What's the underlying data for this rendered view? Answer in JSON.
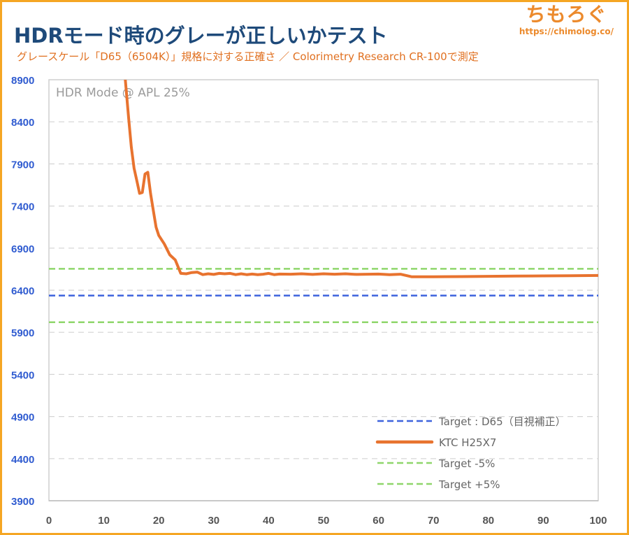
{
  "header": {
    "title": "HDRモード時のグレーが正しいかテスト",
    "subtitle": "グレースケール「D65（6504K）」規格に対する正確さ ／ Colorimetry Research CR-100で測定",
    "brand_name": "ちもろぐ",
    "brand_url": "https://chimolog.co/"
  },
  "chart_data": {
    "type": "line",
    "annotation": "HDR Mode @ APL 25%",
    "xlim": [
      0,
      100
    ],
    "ylim": [
      3900,
      8900
    ],
    "x_ticks": [
      0,
      10,
      20,
      30,
      40,
      50,
      60,
      70,
      80,
      90,
      100
    ],
    "y_ticks": [
      3900,
      4400,
      4900,
      5400,
      5900,
      6400,
      6900,
      7400,
      7900,
      8400,
      8900
    ],
    "grid": "horizontal dashed",
    "legend_position": "bottom-right",
    "series": [
      {
        "name": "Target : D65（目視補正）",
        "style": "dashed",
        "color": "#3d63dd",
        "x": [
          0,
          100
        ],
        "y": [
          6337,
          6337
        ]
      },
      {
        "name": "KTC H25X7",
        "style": "solid",
        "color": "#e8732f",
        "x": [
          13.9,
          14.5,
          15,
          15.5,
          16,
          16.5,
          17,
          17.5,
          18,
          18.5,
          19,
          19.5,
          20,
          21,
          22,
          23,
          24,
          25,
          26,
          27,
          28,
          29,
          30,
          31,
          32,
          33,
          34,
          35,
          36,
          37,
          38,
          39,
          40,
          41,
          42,
          44,
          46,
          48,
          50,
          52,
          54,
          56,
          58,
          60,
          62,
          64,
          66,
          68,
          70,
          75,
          80,
          85,
          90,
          95,
          100
        ],
        "y": [
          8900,
          8450,
          8100,
          7850,
          7700,
          7550,
          7560,
          7780,
          7800,
          7550,
          7350,
          7150,
          7050,
          6950,
          6820,
          6760,
          6600,
          6595,
          6610,
          6615,
          6585,
          6595,
          6588,
          6600,
          6595,
          6600,
          6585,
          6595,
          6585,
          6592,
          6585,
          6590,
          6600,
          6585,
          6592,
          6590,
          6595,
          6588,
          6595,
          6590,
          6595,
          6588,
          6590,
          6592,
          6585,
          6590,
          6560,
          6560,
          6560,
          6562,
          6565,
          6568,
          6570,
          6572,
          6575
        ]
      },
      {
        "name": "Target -5%",
        "style": "dashed",
        "color": "#8fd66b",
        "x": [
          0,
          100
        ],
        "y": [
          6020,
          6020
        ]
      },
      {
        "name": "Target +5%",
        "style": "dashed",
        "color": "#8fd66b",
        "x": [
          0,
          100
        ],
        "y": [
          6654,
          6654
        ]
      }
    ]
  }
}
